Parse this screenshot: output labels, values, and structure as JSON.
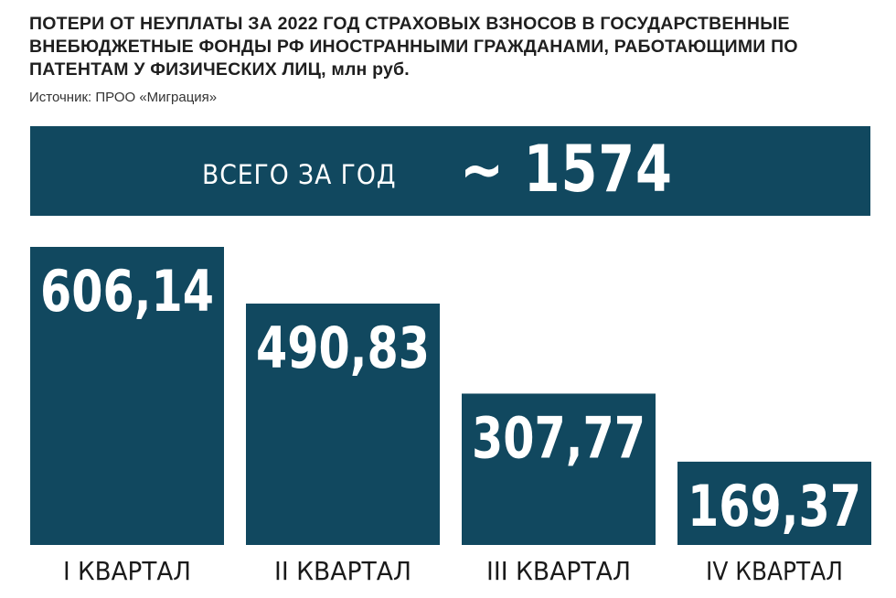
{
  "header": {
    "title": "ПОТЕРИ ОТ НЕУПЛАТЫ ЗА 2022 ГОД СТРАХОВЫХ ВЗНОСОВ В ГОСУДАРСТВЕННЫЕ ВНЕБЮДЖЕТНЫЕ ФОНДЫ РФ ИНОСТРАННЫМИ ГРАЖДАНАМИ, РАБОТАЮЩИМИ ПО ПАТЕНТАМ У ФИЗИЧЕСКИХ ЛИЦ,",
    "unit": "млн руб.",
    "source": "Источник: ПРОО «Миграция»"
  },
  "total": {
    "label": "ВСЕГО ЗА ГОД",
    "value": "~ 1574"
  },
  "colors": {
    "bar": "#11485f",
    "banner": "#11485f",
    "label_text": "#ffffff",
    "axis_text": "#1a1a1a"
  },
  "chart_data": {
    "type": "bar",
    "categories": [
      "I КВАРТАЛ",
      "II КВАРТАЛ",
      "III КВАРТАЛ",
      "IV КВАРТАЛ"
    ],
    "values": [
      606.14,
      490.83,
      307.77,
      169.37
    ],
    "value_labels": [
      "606,14",
      "490,83",
      "307,77",
      "169,37"
    ],
    "title": "ПОТЕРИ ОТ НЕУПЛАТЫ ЗА 2022 ГОД СТРАХОВЫХ ВЗНОСОВ В ГОСУДАРСТВЕННЫЕ ВНЕБЮДЖЕТНЫЕ ФОНДЫ РФ ИНОСТРАННЫМИ ГРАЖДАНАМИ, РАБОТАЮЩИМИ ПО ПАТЕНТАМ У ФИЗИЧЕСКИХ ЛИЦ, млн руб.",
    "xlabel": "",
    "ylabel": "",
    "ylim": [
      0,
      606.14
    ],
    "grid": false
  }
}
